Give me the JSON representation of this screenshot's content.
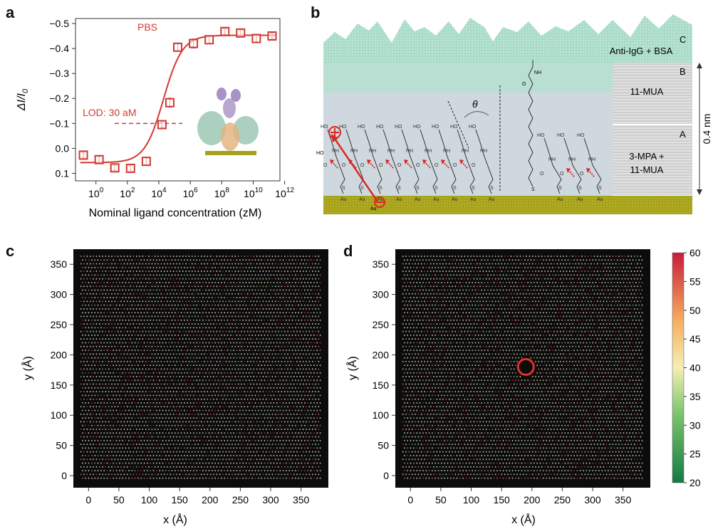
{
  "panels": {
    "a": {
      "letter": "a",
      "chart_data": {
        "type": "scatter",
        "series_label": "PBS",
        "lod_label": "LOD: 30 aM",
        "xlabel": "Nominal ligand concentration (zM)",
        "ylabel": "ΔI/I0",
        "xscale": "log",
        "x_ticks": [
          "10^0",
          "10^2",
          "10^4",
          "10^6",
          "10^8",
          "10^10",
          "10^12"
        ],
        "y_ticks": [
          "−0.5",
          "−0.4",
          "−0.3",
          "−0.2",
          "−0.1",
          "0.0",
          "0.1"
        ],
        "ylim": [
          0.13,
          -0.52
        ],
        "y_inverted": true,
        "points": [
          {
            "x": -0.8,
            "y": 0.027,
            "err": 0.012
          },
          {
            "x": 0.2,
            "y": 0.045,
            "err": 0.012
          },
          {
            "x": 1.2,
            "y": 0.078,
            "err": 0.01
          },
          {
            "x": 2.2,
            "y": 0.08,
            "err": 0.01
          },
          {
            "x": 3.2,
            "y": 0.052,
            "err": 0.014
          },
          {
            "x": 4.2,
            "y": -0.095,
            "err": 0.01
          },
          {
            "x": 4.7,
            "y": -0.183,
            "err": 0.018
          },
          {
            "x": 5.2,
            "y": -0.405,
            "err": 0.014
          },
          {
            "x": 6.2,
            "y": -0.42,
            "err": 0.018
          },
          {
            "x": 7.2,
            "y": -0.435,
            "err": 0.015
          },
          {
            "x": 8.2,
            "y": -0.468,
            "err": 0.012
          },
          {
            "x": 9.2,
            "y": -0.462,
            "err": 0.012
          },
          {
            "x": 10.2,
            "y": -0.44,
            "err": 0.014
          },
          {
            "x": 11.2,
            "y": -0.45,
            "err": 0.012
          }
        ],
        "fit": {
          "bottom": 0.057,
          "top": -0.453,
          "x50": 4.3,
          "slope": 0.6
        },
        "lod_y": -0.1,
        "colors": {
          "series": "#d03a32"
        }
      }
    },
    "b": {
      "letter": "b",
      "layer_c": "Anti-IgG + BSA",
      "layer_c_tag": "C",
      "layer_b": "11-MUA",
      "layer_b_tag": "B",
      "layer_a": "3-MPA +",
      "layer_a2": "11-MUA",
      "layer_a_tag": "A",
      "thickness": "0.4 nm",
      "angle": "θ",
      "atom_ho": "HO",
      "atom_nh": "NH",
      "atom_o": "O",
      "atom_s": "S",
      "atom_au": "Au",
      "colors": {
        "protein": "#a7dcc6",
        "layer_b": "#b9dfd2",
        "bulk": "#cfd8de",
        "gold": "#a6a21a",
        "arrow": "#d62a23"
      }
    },
    "c": {
      "letter": "c",
      "chart_data": {
        "type": "heatmap",
        "xlabel": "x (Å)",
        "ylabel": "y (Å)",
        "x_ticks": [
          "0",
          "50",
          "100",
          "150",
          "200",
          "250",
          "300",
          "350"
        ],
        "y_ticks": [
          "0",
          "50",
          "100",
          "150",
          "200",
          "250",
          "300",
          "350"
        ],
        "xlim": [
          -25,
          395
        ],
        "ylim": [
          -20,
          375
        ]
      }
    },
    "d": {
      "letter": "d",
      "chart_data": {
        "type": "heatmap",
        "xlabel": "x (Å)",
        "ylabel": "y (Å)",
        "x_ticks": [
          "0",
          "50",
          "100",
          "150",
          "200",
          "250",
          "300",
          "350"
        ],
        "y_ticks": [
          "0",
          "50",
          "100",
          "150",
          "200",
          "250",
          "300",
          "350"
        ],
        "xlim": [
          -25,
          395
        ],
        "ylim": [
          -20,
          375
        ],
        "marker_center": [
          190,
          180
        ],
        "colorbar_ticks": [
          "60",
          "55",
          "50",
          "45",
          "40",
          "35",
          "30",
          "25",
          "20"
        ],
        "colorbar_range": [
          20,
          60
        ],
        "colors": {
          "low": "#1a7a45",
          "mid": "#f3eba0",
          "high": "#c8203a",
          "marker": "#e4302b"
        }
      }
    }
  }
}
